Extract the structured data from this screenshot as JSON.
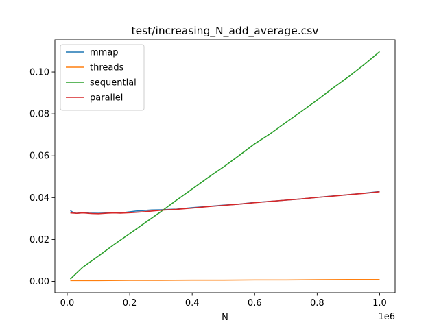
{
  "chart_data": {
    "type": "line",
    "title": "test/increasing_N_add_average.csv",
    "xlabel": "N",
    "ylabel": "",
    "x_offset_label": "1e6",
    "xlim": [
      -0.0395,
      1.0495
    ],
    "ylim": [
      -0.0054,
      0.1154
    ],
    "x_ticks": [
      0.0,
      0.2,
      0.4,
      0.6,
      0.8,
      1.0
    ],
    "x_tick_labels": [
      "0.0",
      "0.2",
      "0.4",
      "0.6",
      "0.8",
      "1.0"
    ],
    "y_ticks": [
      0.0,
      0.02,
      0.04,
      0.06,
      0.08,
      0.1
    ],
    "y_tick_labels": [
      "0.00",
      "0.02",
      "0.04",
      "0.06",
      "0.08",
      "0.10"
    ],
    "grid": false,
    "legend_position": "top-left",
    "series": [
      {
        "name": "mmap",
        "color": "#1f77b4",
        "x": [
          0.01,
          0.02,
          0.03,
          0.05,
          0.07,
          0.1,
          0.13,
          0.15,
          0.17,
          0.2,
          0.22,
          0.25,
          0.27,
          0.3,
          0.35,
          0.4,
          0.45,
          0.5,
          0.55,
          0.6,
          0.65,
          0.7,
          0.75,
          0.8,
          0.85,
          0.9,
          0.95,
          1.0
        ],
        "y": [
          0.0338,
          0.0328,
          0.0325,
          0.0328,
          0.0326,
          0.0325,
          0.0327,
          0.0328,
          0.0327,
          0.0332,
          0.0336,
          0.0339,
          0.0341,
          0.0342,
          0.0345,
          0.0352,
          0.0358,
          0.0364,
          0.0369,
          0.0377,
          0.0382,
          0.0388,
          0.0394,
          0.0401,
          0.0408,
          0.0414,
          0.0421,
          0.0429
        ]
      },
      {
        "name": "threads",
        "color": "#ff7f0e",
        "x": [
          0.01,
          0.1,
          0.2,
          0.3,
          0.4,
          0.5,
          0.6,
          0.7,
          0.8,
          0.9,
          1.0
        ],
        "y": [
          0.0004,
          0.0004,
          0.0005,
          0.0005,
          0.0006,
          0.0006,
          0.0007,
          0.0007,
          0.0008,
          0.0009,
          0.0009
        ]
      },
      {
        "name": "sequential",
        "color": "#2ca02c",
        "x": [
          0.01,
          0.05,
          0.1,
          0.15,
          0.2,
          0.25,
          0.3,
          0.35,
          0.4,
          0.45,
          0.5,
          0.55,
          0.6,
          0.65,
          0.7,
          0.75,
          0.8,
          0.85,
          0.9,
          0.95,
          1.0
        ],
        "y": [
          0.0011,
          0.0068,
          0.0121,
          0.0176,
          0.0228,
          0.0281,
          0.0333,
          0.0388,
          0.0441,
          0.0495,
          0.0546,
          0.0601,
          0.0657,
          0.0705,
          0.0759,
          0.0812,
          0.0866,
          0.0923,
          0.0977,
          0.1035,
          0.1097
        ]
      },
      {
        "name": "parallel",
        "color": "#d62728",
        "x": [
          0.01,
          0.03,
          0.05,
          0.08,
          0.1,
          0.13,
          0.15,
          0.17,
          0.2,
          0.25,
          0.3,
          0.35,
          0.4,
          0.45,
          0.5,
          0.55,
          0.6,
          0.65,
          0.7,
          0.75,
          0.8,
          0.85,
          0.9,
          0.95,
          1.0
        ],
        "y": [
          0.0327,
          0.0325,
          0.0327,
          0.0324,
          0.0323,
          0.0326,
          0.0327,
          0.0326,
          0.0328,
          0.0333,
          0.034,
          0.0344,
          0.035,
          0.0357,
          0.0363,
          0.0369,
          0.0376,
          0.0382,
          0.0388,
          0.0394,
          0.0401,
          0.0407,
          0.0414,
          0.042,
          0.0428
        ]
      }
    ]
  }
}
